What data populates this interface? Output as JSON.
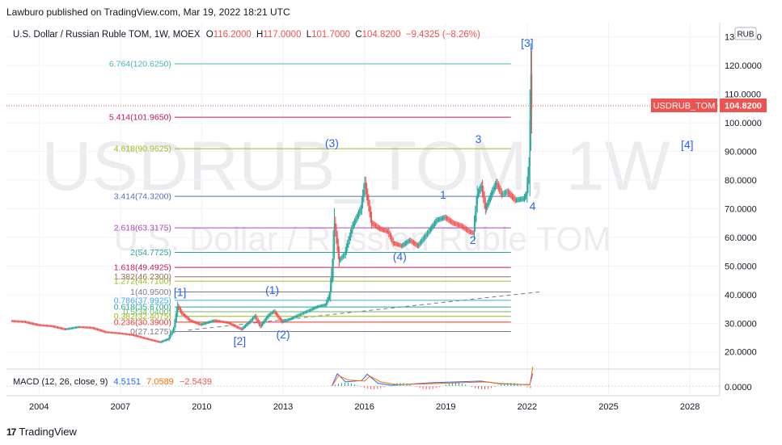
{
  "header": {
    "published": "Lawburo published on TradingView.com, Mar 19, 2022 18:21 UTC",
    "symbol": "U.S. Dollar / Russian Ruble TOM, 1W, MOEX",
    "open_label": "O",
    "open": "116.2000",
    "high_label": "H",
    "high": "117.0000",
    "low_label": "L",
    "low": "101.7000",
    "close_label": "C",
    "close": "104.8200",
    "change": "−9.4325 (−8.26%)"
  },
  "watermark": {
    "line1": "USDRUB_TOM, 1W",
    "line2": "U.S. Dollar / Russian Ruble TOM"
  },
  "currency_badge": "RUB",
  "price_label": {
    "symbol": "USDRUB_TOM",
    "value": "104.8200"
  },
  "footer": {
    "brand": "TradingView",
    "logo": "17"
  },
  "macd": {
    "label": "MACD (12, 26, close, 9)",
    "macd": "4.5151",
    "signal": "7.0589",
    "hist": "−2.5439",
    "axis_label": "0.0000"
  },
  "colors": {
    "up": "#26a69a",
    "down": "#ef5350",
    "wave_label": "#2962ff",
    "macd_line": "#2962ff",
    "signal_line": "#ff6d00"
  },
  "chart_data": {
    "type": "candlestick",
    "title": "U.S. Dollar / Russian Ruble TOM, 1W, MOEX",
    "x_range": [
      2002.8,
      2029.1
    ],
    "x_ticks": [
      {
        "label": "2004",
        "x": 2004
      },
      {
        "label": "2007",
        "x": 2007
      },
      {
        "label": "2010",
        "x": 2010
      },
      {
        "label": "2013",
        "x": 2013
      },
      {
        "label": "2016",
        "x": 2016
      },
      {
        "label": "2019",
        "x": 2019
      },
      {
        "label": "2022",
        "x": 2022
      },
      {
        "label": "2025",
        "x": 2025
      },
      {
        "label": "2028",
        "x": 2028
      }
    ],
    "y_range": [
      14,
      135
    ],
    "y_ticks": [
      "130.0000",
      "120.0000",
      "110.0000",
      "100.0000",
      "90.0000",
      "80.0000",
      "70.0000",
      "60.0000",
      "50.0000",
      "40.0000",
      "30.0000",
      "20.0000"
    ],
    "last_price": 104.82,
    "fib_levels": [
      {
        "label": "6.764(120.6250)",
        "value": 120.625,
        "color": "#4db6ac"
      },
      {
        "label": "5.414(101.9650)",
        "value": 101.965,
        "color": "#c2185b"
      },
      {
        "label": "4.618(90.9625)",
        "value": 90.9625,
        "color": "#9cbb1f"
      },
      {
        "label": "3.414(74.3200)",
        "value": 74.32,
        "color": "#5c6bc0"
      },
      {
        "label": "2.618(63.3175)",
        "value": 63.3175,
        "color": "#ab47bc"
      },
      {
        "label": "2(54.7725)",
        "value": 54.7725,
        "color": "#26a69a"
      },
      {
        "label": "1.618(49.4925)",
        "value": 49.4925,
        "color": "#c2185b"
      },
      {
        "label": "1.382(46.2300)",
        "value": 46.23,
        "color": "#8d6e63"
      },
      {
        "label": "1.272(44.7100)",
        "value": 44.71,
        "color": "#9cbb1f"
      },
      {
        "label": "1(40.9500)",
        "value": 40.95,
        "color": "#787b86"
      },
      {
        "label": "0.786(37.9925)",
        "value": 37.9925,
        "color": "#42a5f5"
      },
      {
        "label": "0.618(35.6700)",
        "value": 35.67,
        "color": "#26a69a"
      },
      {
        "label": "0.5(34.0400)",
        "value": 34.04,
        "color": "#66bb6a"
      },
      {
        "label": "0.382(32.4075)",
        "value": 32.4075,
        "color": "#9cbb1f"
      },
      {
        "label": "0.236(30.3900)",
        "value": 30.39,
        "color": "#e53935"
      },
      {
        "label": "0(27.1275)",
        "value": 27.1275,
        "color": "#787b86"
      }
    ],
    "wave_labels": [
      {
        "text": "[1]",
        "x": 2009.2,
        "y": 39.5
      },
      {
        "text": "[2]",
        "x": 2011.4,
        "y": 22.5
      },
      {
        "text": "(1)",
        "x": 2012.6,
        "y": 40.3
      },
      {
        "text": "(2)",
        "x": 2013.0,
        "y": 24.7
      },
      {
        "text": "(3)",
        "x": 2014.8,
        "y": 91.5
      },
      {
        "text": "(4)",
        "x": 2017.3,
        "y": 52.0
      },
      {
        "text": "1",
        "x": 2018.9,
        "y": 73.5
      },
      {
        "text": "2",
        "x": 2020.0,
        "y": 57.7
      },
      {
        "text": "3",
        "x": 2020.2,
        "y": 93.0
      },
      {
        "text": "4",
        "x": 2022.2,
        "y": 69.5
      },
      {
        "text": "[3]",
        "x": 2022.0,
        "y": 126.5
      },
      {
        "text": "[4]",
        "x": 2027.9,
        "y": 91.0
      }
    ],
    "price_series": [
      [
        2003.0,
        30.8
      ],
      [
        2003.5,
        30.5
      ],
      [
        2004.0,
        29.4
      ],
      [
        2004.5,
        29.0
      ],
      [
        2005.0,
        27.9
      ],
      [
        2005.5,
        28.7
      ],
      [
        2006.0,
        28.4
      ],
      [
        2006.5,
        26.9
      ],
      [
        2007.0,
        26.5
      ],
      [
        2007.5,
        25.9
      ],
      [
        2008.0,
        24.6
      ],
      [
        2008.5,
        23.4
      ],
      [
        2008.8,
        24.5
      ],
      [
        2009.0,
        28.0
      ],
      [
        2009.15,
        36.0
      ],
      [
        2009.3,
        33.5
      ],
      [
        2009.6,
        31.0
      ],
      [
        2010.0,
        29.5
      ],
      [
        2010.5,
        31.0
      ],
      [
        2011.0,
        30.2
      ],
      [
        2011.5,
        27.9
      ],
      [
        2011.8,
        30.5
      ],
      [
        2012.0,
        32.5
      ],
      [
        2012.2,
        29.0
      ],
      [
        2012.5,
        32.8
      ],
      [
        2012.7,
        34.2
      ],
      [
        2013.0,
        30.5
      ],
      [
        2013.3,
        31.5
      ],
      [
        2013.6,
        32.8
      ],
      [
        2014.0,
        34.5
      ],
      [
        2014.3,
        35.8
      ],
      [
        2014.6,
        36.5
      ],
      [
        2014.75,
        40.0
      ],
      [
        2014.85,
        50.0
      ],
      [
        2014.93,
        65.0
      ],
      [
        2015.0,
        60.0
      ],
      [
        2015.1,
        52.0
      ],
      [
        2015.3,
        54.0
      ],
      [
        2015.6,
        64.0
      ],
      [
        2015.9,
        70.0
      ],
      [
        2016.05,
        79.0
      ],
      [
        2016.3,
        65.0
      ],
      [
        2016.6,
        63.0
      ],
      [
        2016.9,
        62.0
      ],
      [
        2017.1,
        58.0
      ],
      [
        2017.4,
        57.0
      ],
      [
        2017.7,
        59.0
      ],
      [
        2018.0,
        57.0
      ],
      [
        2018.4,
        62.0
      ],
      [
        2018.7,
        66.0
      ],
      [
        2019.0,
        67.0
      ],
      [
        2019.3,
        65.0
      ],
      [
        2019.6,
        64.0
      ],
      [
        2019.9,
        62.0
      ],
      [
        2020.05,
        61.5
      ],
      [
        2020.2,
        75.0
      ],
      [
        2020.35,
        78.0
      ],
      [
        2020.5,
        70.0
      ],
      [
        2020.75,
        76.0
      ],
      [
        2020.9,
        79.0
      ],
      [
        2021.1,
        75.0
      ],
      [
        2021.3,
        76.0
      ],
      [
        2021.6,
        73.0
      ],
      [
        2021.9,
        73.5
      ],
      [
        2022.0,
        75.0
      ],
      [
        2022.1,
        85.0
      ],
      [
        2022.17,
        117.0
      ],
      [
        2022.21,
        104.8
      ]
    ],
    "macd_series": [
      {
        "name": "",
        "values": [
          [
            2014.8,
            0
          ],
          [
            2015.0,
            4.5
          ],
          [
            2015.3,
            1.5
          ],
          [
            2015.9,
            2.0
          ],
          [
            2016.1,
            4.3
          ],
          [
            2016.5,
            1.0
          ],
          [
            2017.0,
            0.3
          ],
          [
            2018.5,
            1.2
          ],
          [
            2020.3,
            1.8
          ],
          [
            2021.0,
            0.8
          ],
          [
            2022.1,
            0.5
          ],
          [
            2022.2,
            4.5
          ]
        ]
      },
      {
        "name": "",
        "values": [
          [
            2014.8,
            0
          ],
          [
            2015.05,
            3.8
          ],
          [
            2015.4,
            2.2
          ],
          [
            2016.0,
            1.8
          ],
          [
            2016.2,
            3.6
          ],
          [
            2016.6,
            1.5
          ],
          [
            2017.2,
            0.5
          ],
          [
            2018.6,
            0.9
          ],
          [
            2020.4,
            1.5
          ],
          [
            2021.1,
            0.9
          ],
          [
            2022.1,
            0.4
          ],
          [
            2022.21,
            7.06
          ]
        ]
      }
    ]
  }
}
